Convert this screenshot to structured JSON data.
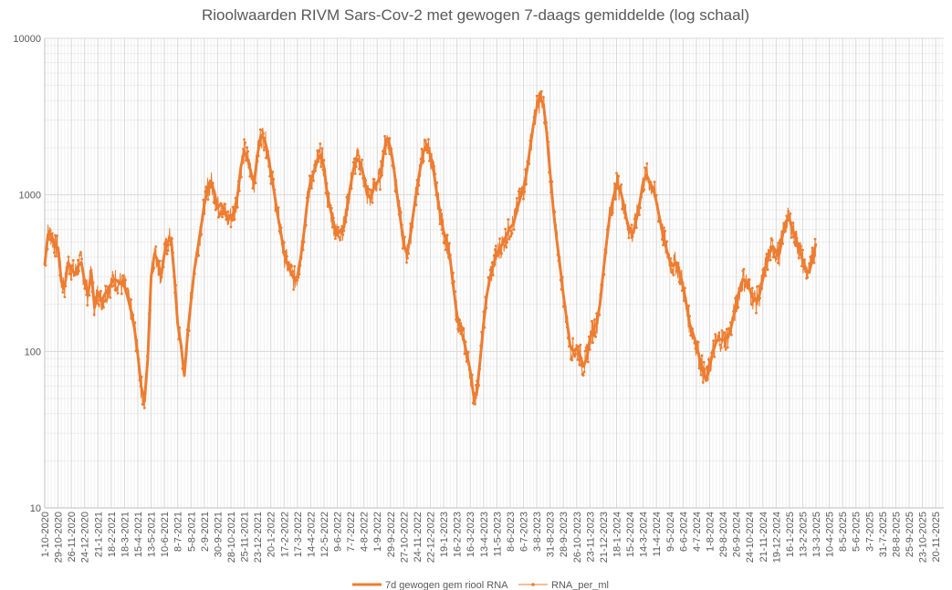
{
  "chart_data": {
    "type": "line",
    "title": "Rioolwaarden RIVM Sars-Cov-2 met gewogen 7-daags gemiddelde (log schaal)",
    "xlabel": "",
    "ylabel": "",
    "y_scale": "log",
    "ylim": [
      10,
      10000
    ],
    "y_ticks": [
      "10",
      "100",
      "1000",
      "10000"
    ],
    "xlim": [
      "2020-10-01",
      "2025-12-07"
    ],
    "grid": true,
    "legend_position": "bottom",
    "x_tick_labels": [
      "1-10-2020",
      "29-10-2020",
      "26-11-2020",
      "24-12-2020",
      "21-1-2021",
      "18-2-2021",
      "18-3-2021",
      "15-4-2021",
      "13-5-2021",
      "10-6-2021",
      "8-7-2021",
      "5-8-2021",
      "2-9-2021",
      "30-9-2021",
      "28-10-2021",
      "25-11-2021",
      "23-12-2021",
      "20-1-2022",
      "17-2-2022",
      "17-3-2022",
      "14-4-2022",
      "12-5-2022",
      "9-6-2022",
      "7-7-2022",
      "4-8-2022",
      "1-9-2022",
      "29-9-2022",
      "27-10-2022",
      "24-11-2022",
      "22-12-2022",
      "19-1-2023",
      "16-2-2023",
      "16-3-2023",
      "13-4-2023",
      "11-5-2023",
      "8-6-2023",
      "6-7-2023",
      "3-8-2023",
      "31-8-2023",
      "28-9-2023",
      "26-10-2023",
      "23-11-2023",
      "21-12-2023",
      "18-1-2024",
      "15-2-2024",
      "14-3-2024",
      "11-4-2024",
      "9-5-2024",
      "6-6-2024",
      "4-7-2024",
      "1-8-2024",
      "29-8-2024",
      "26-9-2024",
      "24-10-2024",
      "21-11-2024",
      "19-12-2024",
      "16-1-2025",
      "13-2-2025",
      "13-3-2025",
      "10-4-2025",
      "8-5-2025",
      "5-6-2025",
      "3-7-2025",
      "31-7-2025",
      "28-8-2025",
      "25-9-2025",
      "23-10-2025",
      "20-11-2025"
    ],
    "series": [
      {
        "name": "7d gewogen gem riool RNA",
        "color": "#ed7d31",
        "style": "line",
        "points": [
          [
            "2020-10-01",
            360
          ],
          [
            "2020-10-08",
            560
          ],
          [
            "2020-10-15",
            560
          ],
          [
            "2020-10-22",
            470
          ],
          [
            "2020-10-29",
            460
          ],
          [
            "2020-11-05",
            280
          ],
          [
            "2020-11-12",
            260
          ],
          [
            "2020-11-19",
            370
          ],
          [
            "2020-11-26",
            340
          ],
          [
            "2020-12-03",
            310
          ],
          [
            "2020-12-10",
            350
          ],
          [
            "2020-12-17",
            370
          ],
          [
            "2020-12-24",
            280
          ],
          [
            "2020-12-31",
            230
          ],
          [
            "2021-01-07",
            320
          ],
          [
            "2021-01-14",
            190
          ],
          [
            "2021-01-21",
            240
          ],
          [
            "2021-01-28",
            210
          ],
          [
            "2021-02-04",
            230
          ],
          [
            "2021-02-11",
            250
          ],
          [
            "2021-02-18",
            270
          ],
          [
            "2021-02-25",
            290
          ],
          [
            "2021-03-04",
            280
          ],
          [
            "2021-03-11",
            270
          ],
          [
            "2021-03-18",
            260
          ],
          [
            "2021-03-25",
            220
          ],
          [
            "2021-04-01",
            180
          ],
          [
            "2021-04-08",
            140
          ],
          [
            "2021-04-15",
            95
          ],
          [
            "2021-04-22",
            60
          ],
          [
            "2021-04-29",
            48
          ],
          [
            "2021-05-06",
            90
          ],
          [
            "2021-05-13",
            300
          ],
          [
            "2021-05-20",
            420
          ],
          [
            "2021-05-27",
            380
          ],
          [
            "2021-06-03",
            300
          ],
          [
            "2021-06-10",
            420
          ],
          [
            "2021-06-17",
            500
          ],
          [
            "2021-06-24",
            530
          ],
          [
            "2021-07-01",
            300
          ],
          [
            "2021-07-08",
            150
          ],
          [
            "2021-07-15",
            110
          ],
          [
            "2021-07-22",
            70
          ],
          [
            "2021-07-29",
            130
          ],
          [
            "2021-08-05",
            210
          ],
          [
            "2021-08-12",
            330
          ],
          [
            "2021-08-19",
            450
          ],
          [
            "2021-08-26",
            620
          ],
          [
            "2021-09-02",
            860
          ],
          [
            "2021-09-09",
            1100
          ],
          [
            "2021-09-16",
            1200
          ],
          [
            "2021-09-23",
            1050
          ],
          [
            "2021-09-30",
            820
          ],
          [
            "2021-10-07",
            880
          ],
          [
            "2021-10-14",
            780
          ],
          [
            "2021-10-21",
            700
          ],
          [
            "2021-10-28",
            720
          ],
          [
            "2021-11-04",
            780
          ],
          [
            "2021-11-11",
            1000
          ],
          [
            "2021-11-18",
            1500
          ],
          [
            "2021-11-25",
            1900
          ],
          [
            "2021-12-02",
            1700
          ],
          [
            "2021-12-09",
            1400
          ],
          [
            "2021-12-16",
            1200
          ],
          [
            "2021-12-23",
            1800
          ],
          [
            "2021-12-30",
            2400
          ],
          [
            "2022-01-06",
            2300
          ],
          [
            "2022-01-13",
            1900
          ],
          [
            "2022-01-20",
            1400
          ],
          [
            "2022-01-27",
            1050
          ],
          [
            "2022-02-03",
            750
          ],
          [
            "2022-02-10",
            580
          ],
          [
            "2022-02-17",
            420
          ],
          [
            "2022-02-24",
            360
          ],
          [
            "2022-03-03",
            320
          ],
          [
            "2022-03-10",
            290
          ],
          [
            "2022-03-17",
            300
          ],
          [
            "2022-03-24",
            400
          ],
          [
            "2022-03-31",
            580
          ],
          [
            "2022-04-07",
            900
          ],
          [
            "2022-04-14",
            1250
          ],
          [
            "2022-04-21",
            1400
          ],
          [
            "2022-04-28",
            1650
          ],
          [
            "2022-05-05",
            1800
          ],
          [
            "2022-05-12",
            1500
          ],
          [
            "2022-05-19",
            1000
          ],
          [
            "2022-05-26",
            800
          ],
          [
            "2022-06-02",
            650
          ],
          [
            "2022-06-09",
            550
          ],
          [
            "2022-06-16",
            600
          ],
          [
            "2022-06-23",
            620
          ],
          [
            "2022-06-30",
            850
          ],
          [
            "2022-07-07",
            1150
          ],
          [
            "2022-07-14",
            1500
          ],
          [
            "2022-07-21",
            1700
          ],
          [
            "2022-07-28",
            1600
          ],
          [
            "2022-08-04",
            1300
          ],
          [
            "2022-08-11",
            1000
          ],
          [
            "2022-08-18",
            950
          ],
          [
            "2022-08-25",
            1100
          ],
          [
            "2022-09-01",
            1200
          ],
          [
            "2022-09-08",
            1300
          ],
          [
            "2022-09-15",
            1900
          ],
          [
            "2022-09-22",
            2300
          ],
          [
            "2022-09-29",
            2000
          ],
          [
            "2022-10-06",
            1500
          ],
          [
            "2022-10-13",
            1000
          ],
          [
            "2022-10-20",
            700
          ],
          [
            "2022-10-27",
            480
          ],
          [
            "2022-11-03",
            420
          ],
          [
            "2022-11-10",
            550
          ],
          [
            "2022-11-17",
            800
          ],
          [
            "2022-11-24",
            1100
          ],
          [
            "2022-12-01",
            1500
          ],
          [
            "2022-12-08",
            1900
          ],
          [
            "2022-12-15",
            2100
          ],
          [
            "2022-12-22",
            1800
          ],
          [
            "2022-12-29",
            1400
          ],
          [
            "2023-01-05",
            1000
          ],
          [
            "2023-01-12",
            750
          ],
          [
            "2023-01-19",
            580
          ],
          [
            "2023-01-26",
            500
          ],
          [
            "2023-02-02",
            380
          ],
          [
            "2023-02-09",
            250
          ],
          [
            "2023-02-16",
            170
          ],
          [
            "2023-02-23",
            140
          ],
          [
            "2023-03-02",
            120
          ],
          [
            "2023-03-09",
            95
          ],
          [
            "2023-03-16",
            75
          ],
          [
            "2023-03-23",
            52
          ],
          [
            "2023-03-30",
            55
          ],
          [
            "2023-04-06",
            90
          ],
          [
            "2023-04-13",
            150
          ],
          [
            "2023-04-20",
            230
          ],
          [
            "2023-04-27",
            300
          ],
          [
            "2023-05-04",
            360
          ],
          [
            "2023-05-11",
            420
          ],
          [
            "2023-05-18",
            460
          ],
          [
            "2023-05-25",
            500
          ],
          [
            "2023-06-01",
            560
          ],
          [
            "2023-06-08",
            620
          ],
          [
            "2023-06-15",
            650
          ],
          [
            "2023-06-22",
            800
          ],
          [
            "2023-06-29",
            950
          ],
          [
            "2023-07-06",
            1100
          ],
          [
            "2023-07-13",
            1400
          ],
          [
            "2023-07-20",
            2000
          ],
          [
            "2023-07-27",
            2800
          ],
          [
            "2023-08-03",
            3600
          ],
          [
            "2023-08-10",
            4100
          ],
          [
            "2023-08-17",
            3800
          ],
          [
            "2023-08-24",
            2500
          ],
          [
            "2023-08-31",
            1400
          ],
          [
            "2023-09-07",
            800
          ],
          [
            "2023-09-14",
            520
          ],
          [
            "2023-09-21",
            350
          ],
          [
            "2023-09-28",
            230
          ],
          [
            "2023-10-05",
            160
          ],
          [
            "2023-10-12",
            110
          ],
          [
            "2023-10-19",
            100
          ],
          [
            "2023-10-26",
            105
          ],
          [
            "2023-11-02",
            95
          ],
          [
            "2023-11-09",
            80
          ],
          [
            "2023-11-16",
            90
          ],
          [
            "2023-11-23",
            120
          ],
          [
            "2023-11-30",
            140
          ],
          [
            "2023-12-07",
            150
          ],
          [
            "2023-12-14",
            200
          ],
          [
            "2023-12-21",
            320
          ],
          [
            "2023-12-28",
            500
          ],
          [
            "2024-01-04",
            750
          ],
          [
            "2024-01-11",
            950
          ],
          [
            "2024-01-18",
            1150
          ],
          [
            "2024-01-25",
            1100
          ],
          [
            "2024-02-01",
            900
          ],
          [
            "2024-02-08",
            700
          ],
          [
            "2024-02-15",
            580
          ],
          [
            "2024-02-22",
            570
          ],
          [
            "2024-02-29",
            700
          ],
          [
            "2024-03-07",
            900
          ],
          [
            "2024-03-14",
            1200
          ],
          [
            "2024-03-21",
            1350
          ],
          [
            "2024-03-28",
            1200
          ],
          [
            "2024-04-04",
            1100
          ],
          [
            "2024-04-11",
            900
          ],
          [
            "2024-04-18",
            700
          ],
          [
            "2024-04-25",
            550
          ],
          [
            "2024-05-02",
            450
          ],
          [
            "2024-05-09",
            380
          ],
          [
            "2024-05-16",
            350
          ],
          [
            "2024-05-23",
            370
          ],
          [
            "2024-05-30",
            320
          ],
          [
            "2024-06-06",
            260
          ],
          [
            "2024-06-13",
            200
          ],
          [
            "2024-06-20",
            150
          ],
          [
            "2024-06-27",
            130
          ],
          [
            "2024-07-04",
            110
          ],
          [
            "2024-07-11",
            90
          ],
          [
            "2024-07-18",
            75
          ],
          [
            "2024-07-25",
            65
          ],
          [
            "2024-08-01",
            80
          ],
          [
            "2024-08-08",
            100
          ],
          [
            "2024-08-15",
            115
          ],
          [
            "2024-08-22",
            120
          ],
          [
            "2024-08-29",
            118
          ],
          [
            "2024-09-05",
            122
          ],
          [
            "2024-09-12",
            130
          ],
          [
            "2024-09-19",
            160
          ],
          [
            "2024-09-26",
            200
          ],
          [
            "2024-10-03",
            250
          ],
          [
            "2024-10-10",
            290
          ],
          [
            "2024-10-17",
            280
          ],
          [
            "2024-10-24",
            250
          ],
          [
            "2024-10-31",
            220
          ],
          [
            "2024-11-07",
            210
          ],
          [
            "2024-11-14",
            230
          ],
          [
            "2024-11-21",
            290
          ],
          [
            "2024-11-28",
            360
          ],
          [
            "2024-12-05",
            420
          ],
          [
            "2024-12-12",
            470
          ],
          [
            "2024-12-19",
            430
          ],
          [
            "2024-12-26",
            420
          ],
          [
            "2025-01-02",
            560
          ],
          [
            "2025-01-09",
            680
          ],
          [
            "2025-01-16",
            700
          ],
          [
            "2025-01-23",
            600
          ],
          [
            "2025-01-30",
            520
          ],
          [
            "2025-02-06",
            450
          ],
          [
            "2025-02-13",
            380
          ],
          [
            "2025-02-20",
            330
          ],
          [
            "2025-02-27",
            320
          ],
          [
            "2025-03-06",
            400
          ],
          [
            "2025-03-13",
            490
          ]
        ]
      },
      {
        "name": "RNA_per_ml",
        "color": "#ed7d31",
        "style": "line-with-markers",
        "points": "same daily measurements as the weighted average, with day-to-day scatter around it"
      }
    ]
  }
}
